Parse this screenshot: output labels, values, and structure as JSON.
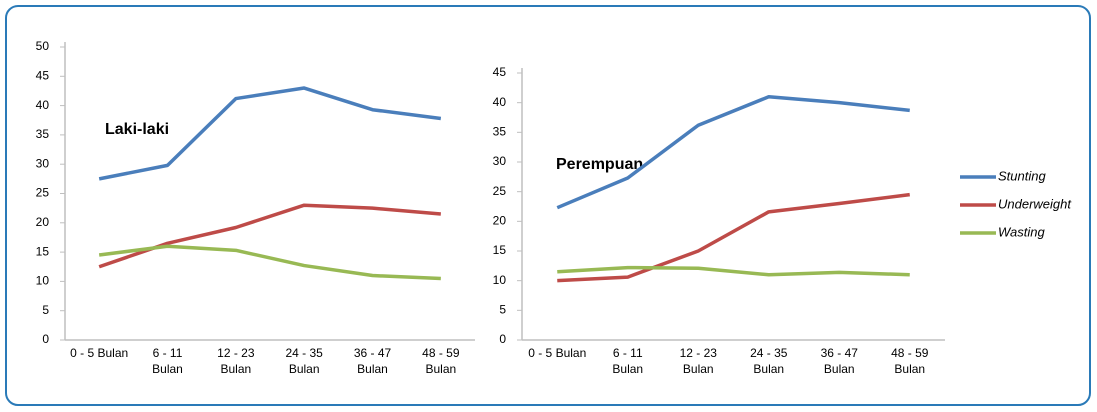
{
  "legend": [
    {
      "name": "Stunting",
      "color": "#4a7ebb"
    },
    {
      "name": "Underweight",
      "color": "#be4b48"
    },
    {
      "name": "Wasting",
      "color": "#98b954"
    }
  ],
  "chart_data": [
    {
      "type": "line",
      "title": "Laki-laki",
      "categories": [
        "0 - 5 Bulan",
        "6 - 11\nBulan",
        "12 - 23\nBulan",
        "24 - 35\nBulan",
        "36 - 47\nBulan",
        "48 - 59\nBulan"
      ],
      "series": [
        {
          "values": [
            27.5,
            29.8,
            41.2,
            43,
            39.3,
            37.8
          ]
        },
        {
          "values": [
            12.5,
            16.5,
            19.2,
            23,
            22.5,
            21.5
          ]
        },
        {
          "values": [
            14.5,
            16,
            15.3,
            12.7,
            11,
            10.5
          ]
        }
      ],
      "ylim": [
        0,
        50
      ],
      "yticks": [
        0,
        5,
        10,
        15,
        20,
        25,
        30,
        35,
        40,
        45,
        50
      ],
      "grid": false
    },
    {
      "type": "line",
      "title": "Perempuan",
      "categories": [
        "0 - 5 Bulan",
        "6 - 11\nBulan",
        "12 - 23\nBulan",
        "24 - 35\nBulan",
        "36 - 47\nBulan",
        "48 - 59\nBulan"
      ],
      "series": [
        {
          "values": [
            22.3,
            27.3,
            36.2,
            41,
            40,
            38.7
          ]
        },
        {
          "values": [
            10,
            10.6,
            15,
            21.6,
            23,
            24.5
          ]
        },
        {
          "values": [
            11.5,
            12.2,
            12.1,
            11,
            11.4,
            11
          ]
        }
      ],
      "ylim": [
        0,
        45
      ],
      "yticks": [
        0,
        5,
        10,
        15,
        20,
        25,
        30,
        35,
        40,
        45
      ],
      "grid": false
    }
  ]
}
